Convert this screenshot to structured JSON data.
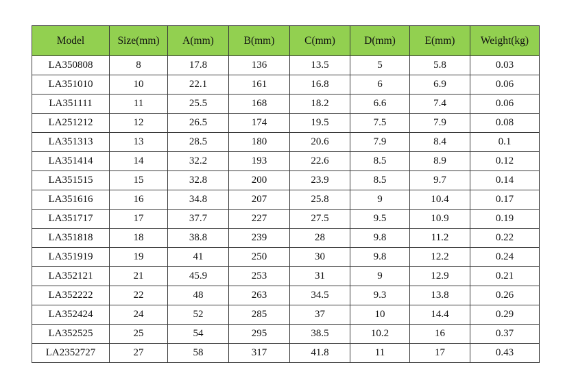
{
  "table": {
    "headers": [
      "Model",
      "Size(mm)",
      "A(mm)",
      "B(mm)",
      "C(mm)",
      "D(mm)",
      "E(mm)",
      "Weight(kg)"
    ],
    "rows": [
      [
        "LA350808",
        "8",
        "17.8",
        "136",
        "13.5",
        "5",
        "5.8",
        "0.03"
      ],
      [
        "LA351010",
        "10",
        "22.1",
        "161",
        "16.8",
        "6",
        "6.9",
        "0.06"
      ],
      [
        "LA351111",
        "11",
        "25.5",
        "168",
        "18.2",
        "6.6",
        "7.4",
        "0.06"
      ],
      [
        "LA251212",
        "12",
        "26.5",
        "174",
        "19.5",
        "7.5",
        "7.9",
        "0.08"
      ],
      [
        "LA351313",
        "13",
        "28.5",
        "180",
        "20.6",
        "7.9",
        "8.4",
        "0.1"
      ],
      [
        "LA351414",
        "14",
        "32.2",
        "193",
        "22.6",
        "8.5",
        "8.9",
        "0.12"
      ],
      [
        "LA351515",
        "15",
        "32.8",
        "200",
        "23.9",
        "8.5",
        "9.7",
        "0.14"
      ],
      [
        "LA351616",
        "16",
        "34.8",
        "207",
        "25.8",
        "9",
        "10.4",
        "0.17"
      ],
      [
        "LA351717",
        "17",
        "37.7",
        "227",
        "27.5",
        "9.5",
        "10.9",
        "0.19"
      ],
      [
        "LA351818",
        "18",
        "38.8",
        "239",
        "28",
        "9.8",
        "11.2",
        "0.22"
      ],
      [
        "LA351919",
        "19",
        "41",
        "250",
        "30",
        "9.8",
        "12.2",
        "0.24"
      ],
      [
        "LA352121",
        "21",
        "45.9",
        "253",
        "31",
        "9",
        "12.9",
        "0.21"
      ],
      [
        "LA352222",
        "22",
        "48",
        "263",
        "34.5",
        "9.3",
        "13.8",
        "0.26"
      ],
      [
        "LA352424",
        "24",
        "52",
        "285",
        "37",
        "10",
        "14.4",
        "0.29"
      ],
      [
        "LA352525",
        "25",
        "54",
        "295",
        "38.5",
        "10.2",
        "16",
        "0.37"
      ],
      [
        "LA2352727",
        "27",
        "58",
        "317",
        "41.8",
        "11",
        "17",
        "0.43"
      ]
    ]
  },
  "colors": {
    "header_background": "#92d050",
    "border": "#3a3a3a",
    "text": "#111111"
  }
}
